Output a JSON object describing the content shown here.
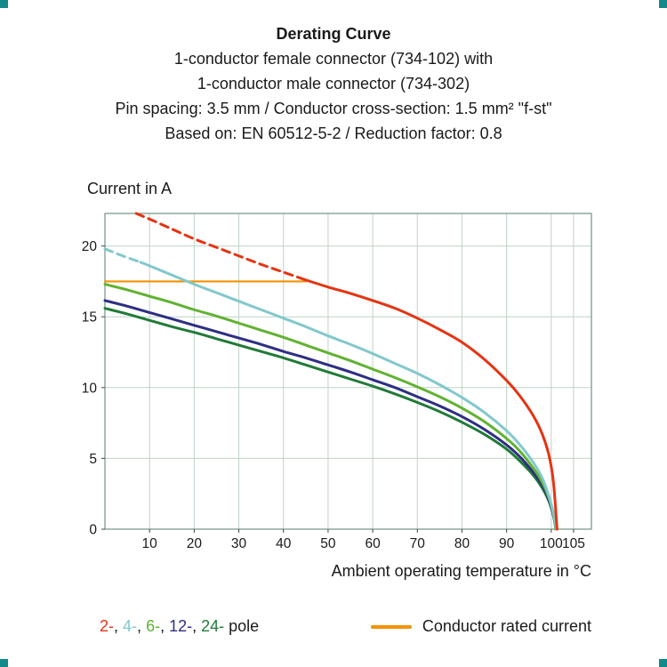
{
  "page": {
    "corner_mark_color": "#12898b"
  },
  "header": {
    "title": "Derating Curve",
    "lines": [
      "1-conductor female connector (734-102) with",
      "1-conductor male connector (734-302)",
      "Pin spacing: 3.5 mm / Conductor cross-section: 1.5 mm² \"f-st\"",
      "Based on: EN 60512-5-2 / Reduction factor: 0.8"
    ]
  },
  "axes": {
    "y_label": "Current in A",
    "x_label": "Ambient operating temperature in °C"
  },
  "legend": {
    "poles": [
      {
        "label": "2-",
        "color": "#e63312"
      },
      {
        "label": "4-",
        "color": "#82c8cc"
      },
      {
        "label": "6-",
        "color": "#61b232"
      },
      {
        "label": "12-",
        "color": "#2d2e83"
      },
      {
        "label": "24-",
        "color": "#217a38"
      }
    ],
    "separator": ", ",
    "suffix": " pole",
    "rated_label": "Conductor rated current",
    "rated_color": "#f39200"
  },
  "chart_data": {
    "type": "line",
    "title": "Derating Curve",
    "xlabel": "Ambient operating temperature in °C",
    "ylabel": "Current in A",
    "xlim": [
      0,
      109
    ],
    "ylim": [
      0,
      22.3
    ],
    "x_ticks": [
      10,
      20,
      30,
      40,
      50,
      60,
      70,
      80,
      90,
      100,
      105
    ],
    "y_ticks": [
      0,
      5,
      10,
      15,
      20
    ],
    "grid": true,
    "legend_position": "bottom",
    "frame_color": "#6f9483",
    "grid_color": "#bfd4c5",
    "series": [
      {
        "name": "Conductor rated current",
        "color": "#f39200",
        "width": 2.2,
        "dash_until_x": null,
        "points": [
          [
            0,
            17.5
          ],
          [
            45,
            17.5
          ]
        ]
      },
      {
        "name": "24-pole",
        "color": "#217a38",
        "width": 3,
        "dash_until_x": null,
        "points": [
          [
            0,
            15.6
          ],
          [
            5,
            15.2
          ],
          [
            10,
            14.75
          ],
          [
            15,
            14.3
          ],
          [
            20,
            13.9
          ],
          [
            25,
            13.45
          ],
          [
            30,
            13.0
          ],
          [
            35,
            12.55
          ],
          [
            40,
            12.1
          ],
          [
            45,
            11.6
          ],
          [
            50,
            11.1
          ],
          [
            55,
            10.6
          ],
          [
            60,
            10.1
          ],
          [
            65,
            9.55
          ],
          [
            70,
            8.95
          ],
          [
            75,
            8.3
          ],
          [
            80,
            7.55
          ],
          [
            85,
            6.7
          ],
          [
            90,
            5.65
          ],
          [
            93,
            4.8
          ],
          [
            96,
            3.8
          ],
          [
            98,
            2.9
          ],
          [
            99.5,
            1.95
          ],
          [
            100.6,
            0.8
          ],
          [
            101,
            0
          ]
        ]
      },
      {
        "name": "12-pole",
        "color": "#2d2e83",
        "width": 3,
        "dash_until_x": null,
        "points": [
          [
            0,
            16.15
          ],
          [
            5,
            15.75
          ],
          [
            10,
            15.3
          ],
          [
            15,
            14.85
          ],
          [
            20,
            14.4
          ],
          [
            25,
            13.95
          ],
          [
            30,
            13.5
          ],
          [
            35,
            13.05
          ],
          [
            40,
            12.55
          ],
          [
            45,
            12.1
          ],
          [
            50,
            11.6
          ],
          [
            55,
            11.1
          ],
          [
            60,
            10.55
          ],
          [
            65,
            10.0
          ],
          [
            70,
            9.35
          ],
          [
            75,
            8.7
          ],
          [
            80,
            7.95
          ],
          [
            85,
            7.05
          ],
          [
            90,
            5.95
          ],
          [
            93,
            5.1
          ],
          [
            96,
            4.0
          ],
          [
            98,
            3.1
          ],
          [
            99.5,
            2.05
          ],
          [
            100.6,
            0.85
          ],
          [
            101,
            0
          ]
        ]
      },
      {
        "name": "6-pole",
        "color": "#61b232",
        "width": 3,
        "dash_until_x": null,
        "points": [
          [
            0,
            17.3
          ],
          [
            5,
            16.9
          ],
          [
            10,
            16.45
          ],
          [
            15,
            16.0
          ],
          [
            20,
            15.5
          ],
          [
            25,
            15.05
          ],
          [
            30,
            14.55
          ],
          [
            35,
            14.05
          ],
          [
            40,
            13.55
          ],
          [
            45,
            13.0
          ],
          [
            50,
            12.45
          ],
          [
            55,
            11.9
          ],
          [
            60,
            11.3
          ],
          [
            65,
            10.7
          ],
          [
            70,
            10.05
          ],
          [
            75,
            9.35
          ],
          [
            80,
            8.55
          ],
          [
            85,
            7.6
          ],
          [
            90,
            6.4
          ],
          [
            93,
            5.5
          ],
          [
            96,
            4.3
          ],
          [
            98,
            3.3
          ],
          [
            99.5,
            2.2
          ],
          [
            100.6,
            0.9
          ],
          [
            101,
            0
          ]
        ]
      },
      {
        "name": "4-pole",
        "color": "#82c8cc",
        "width": 3,
        "dash_until_x": 8,
        "points": [
          [
            0,
            19.8
          ],
          [
            4,
            19.3
          ],
          [
            8,
            18.85
          ],
          [
            10,
            18.6
          ],
          [
            15,
            17.95
          ],
          [
            20,
            17.3
          ],
          [
            25,
            16.7
          ],
          [
            30,
            16.1
          ],
          [
            35,
            15.5
          ],
          [
            40,
            14.9
          ],
          [
            45,
            14.3
          ],
          [
            50,
            13.65
          ],
          [
            55,
            13.05
          ],
          [
            60,
            12.4
          ],
          [
            65,
            11.7
          ],
          [
            70,
            11.0
          ],
          [
            75,
            10.2
          ],
          [
            80,
            9.3
          ],
          [
            85,
            8.25
          ],
          [
            90,
            6.95
          ],
          [
            93,
            5.95
          ],
          [
            96,
            4.7
          ],
          [
            98,
            3.6
          ],
          [
            99.5,
            2.3
          ],
          [
            100.6,
            1.0
          ],
          [
            101.1,
            0
          ]
        ]
      },
      {
        "name": "2-pole",
        "color": "#e63312",
        "width": 3,
        "dash_until_x": 45,
        "points": [
          [
            7,
            22.3
          ],
          [
            10,
            21.9
          ],
          [
            15,
            21.2
          ],
          [
            20,
            20.5
          ],
          [
            25,
            19.9
          ],
          [
            30,
            19.3
          ],
          [
            35,
            18.7
          ],
          [
            40,
            18.15
          ],
          [
            45,
            17.6
          ],
          [
            50,
            17.1
          ],
          [
            55,
            16.65
          ],
          [
            60,
            16.15
          ],
          [
            65,
            15.6
          ],
          [
            70,
            14.9
          ],
          [
            75,
            14.1
          ],
          [
            80,
            13.2
          ],
          [
            85,
            12.0
          ],
          [
            90,
            10.5
          ],
          [
            93,
            9.4
          ],
          [
            96,
            8.0
          ],
          [
            98,
            6.7
          ],
          [
            99.5,
            5.2
          ],
          [
            100.5,
            3.3
          ],
          [
            101.3,
            0
          ]
        ]
      }
    ]
  }
}
